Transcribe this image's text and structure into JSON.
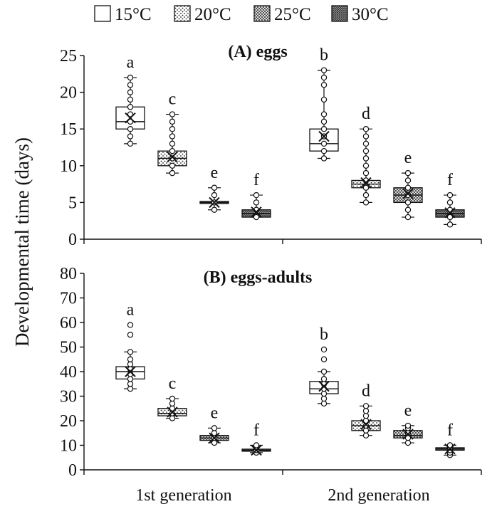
{
  "chart_data": {
    "type": "boxplot",
    "ylabel": "Developmental time (days)",
    "legend": {
      "placement": "top",
      "entries": [
        {
          "label": "15°C",
          "pattern": "plain"
        },
        {
          "label": "20°C",
          "pattern": "dots"
        },
        {
          "label": "25°C",
          "pattern": "diagonal-cross"
        },
        {
          "label": "30°C",
          "pattern": "crosshatch"
        }
      ]
    },
    "categories": [
      "1st generation",
      "2nd generation"
    ],
    "panels": [
      {
        "title": "(A) eggs",
        "ylim": [
          0,
          25
        ],
        "yticks": [
          "0",
          "5",
          "10",
          "15",
          "20",
          "25"
        ],
        "groups": [
          {
            "category": "1st generation",
            "boxes": [
              {
                "temp": "15°C",
                "letter": "a",
                "q1": 15,
                "median": 16,
                "q3": 18,
                "mean": 16.5,
                "whisker_low": 13,
                "whisker_high": 22,
                "points": [
                  13,
                  14,
                  15,
                  16,
                  17,
                  18,
                  19,
                  20,
                  21,
                  22
                ]
              },
              {
                "temp": "20°C",
                "letter": "c",
                "q1": 10,
                "median": 11,
                "q3": 12,
                "mean": 11.2,
                "whisker_low": 9,
                "whisker_high": 17,
                "points": [
                  9,
                  10,
                  11,
                  12,
                  13,
                  14,
                  15,
                  16,
                  17
                ]
              },
              {
                "temp": "25°C",
                "letter": "e",
                "q1": 5,
                "median": 5,
                "q3": 5,
                "mean": 5,
                "whisker_low": 4,
                "whisker_high": 7,
                "points": [
                  4,
                  5,
                  6,
                  7
                ]
              },
              {
                "temp": "30°C",
                "letter": "f",
                "q1": 3,
                "median": 3.5,
                "q3": 4,
                "mean": 3.7,
                "whisker_low": 3,
                "whisker_high": 6,
                "points": [
                  3,
                  4,
                  5,
                  6
                ]
              }
            ]
          },
          {
            "category": "2nd generation",
            "boxes": [
              {
                "temp": "15°C",
                "letter": "b",
                "q1": 12,
                "median": 13,
                "q3": 15,
                "mean": 14,
                "whisker_low": 11,
                "whisker_high": 23,
                "points": [
                  11,
                  12,
                  13,
                  14,
                  15,
                  16,
                  17,
                  19,
                  21,
                  22,
                  23
                ]
              },
              {
                "temp": "20°C",
                "letter": "d",
                "q1": 7,
                "median": 7.5,
                "q3": 8,
                "mean": 7.7,
                "whisker_low": 5,
                "whisker_high": 15,
                "points": [
                  5,
                  6,
                  7,
                  8,
                  9,
                  10,
                  11,
                  12,
                  13,
                  14,
                  15
                ]
              },
              {
                "temp": "25°C",
                "letter": "e",
                "q1": 5,
                "median": 6,
                "q3": 7,
                "mean": 6.2,
                "whisker_low": 3,
                "whisker_high": 9,
                "points": [
                  3,
                  4,
                  5,
                  6,
                  7,
                  8,
                  9
                ]
              },
              {
                "temp": "30°C",
                "letter": "f",
                "q1": 3,
                "median": 3.5,
                "q3": 4,
                "mean": 3.6,
                "whisker_low": 2,
                "whisker_high": 6,
                "points": [
                  2,
                  3,
                  4,
                  5,
                  6
                ]
              }
            ]
          }
        ]
      },
      {
        "title": "(B) eggs-adults",
        "ylim": [
          0,
          80
        ],
        "yticks": [
          "0",
          "10",
          "20",
          "30",
          "40",
          "50",
          "60",
          "70",
          "80"
        ],
        "groups": [
          {
            "category": "1st generation",
            "boxes": [
              {
                "temp": "15°C",
                "letter": "a",
                "q1": 37,
                "median": 40,
                "q3": 42,
                "mean": 40,
                "whisker_low": 33,
                "whisker_high": 48,
                "points": [
                  33,
                  35,
                  37,
                  39,
                  41,
                  43,
                  45,
                  48,
                  55,
                  59
                ]
              },
              {
                "temp": "20°C",
                "letter": "c",
                "q1": 22,
                "median": 23,
                "q3": 25,
                "mean": 23.5,
                "whisker_low": 21,
                "whisker_high": 29,
                "points": [
                  21,
                  23,
                  25,
                  27,
                  29
                ]
              },
              {
                "temp": "25°C",
                "letter": "e",
                "q1": 12,
                "median": 13,
                "q3": 14,
                "mean": 13,
                "whisker_low": 11,
                "whisker_high": 17,
                "points": [
                  11,
                  13,
                  15,
                  17
                ]
              },
              {
                "temp": "30°C",
                "letter": "f",
                "q1": 8,
                "median": 8,
                "q3": 8,
                "mean": 8,
                "whisker_low": 7,
                "whisker_high": 10,
                "points": [
                  7,
                  8,
                  9,
                  10
                ]
              }
            ]
          },
          {
            "category": "2nd generation",
            "boxes": [
              {
                "temp": "15°C",
                "letter": "b",
                "q1": 31,
                "median": 33,
                "q3": 36,
                "mean": 34,
                "whisker_low": 27,
                "whisker_high": 40,
                "points": [
                  27,
                  29,
                  31,
                  33,
                  35,
                  37,
                  40,
                  45,
                  49
                ]
              },
              {
                "temp": "20°C",
                "letter": "d",
                "q1": 16,
                "median": 18,
                "q3": 20,
                "mean": 18.5,
                "whisker_low": 14,
                "whisker_high": 26,
                "points": [
                  14,
                  16,
                  18,
                  20,
                  22,
                  24,
                  26
                ]
              },
              {
                "temp": "25°C",
                "letter": "e",
                "q1": 13,
                "median": 14,
                "q3": 16,
                "mean": 14.5,
                "whisker_low": 11,
                "whisker_high": 18,
                "points": [
                  11,
                  13,
                  15,
                  17,
                  18
                ]
              },
              {
                "temp": "30°C",
                "letter": "f",
                "q1": 8,
                "median": 8.5,
                "q3": 9,
                "mean": 8.5,
                "whisker_low": 6,
                "whisker_high": 10,
                "points": [
                  6,
                  7,
                  8,
                  9,
                  10
                ]
              }
            ]
          }
        ]
      }
    ]
  }
}
